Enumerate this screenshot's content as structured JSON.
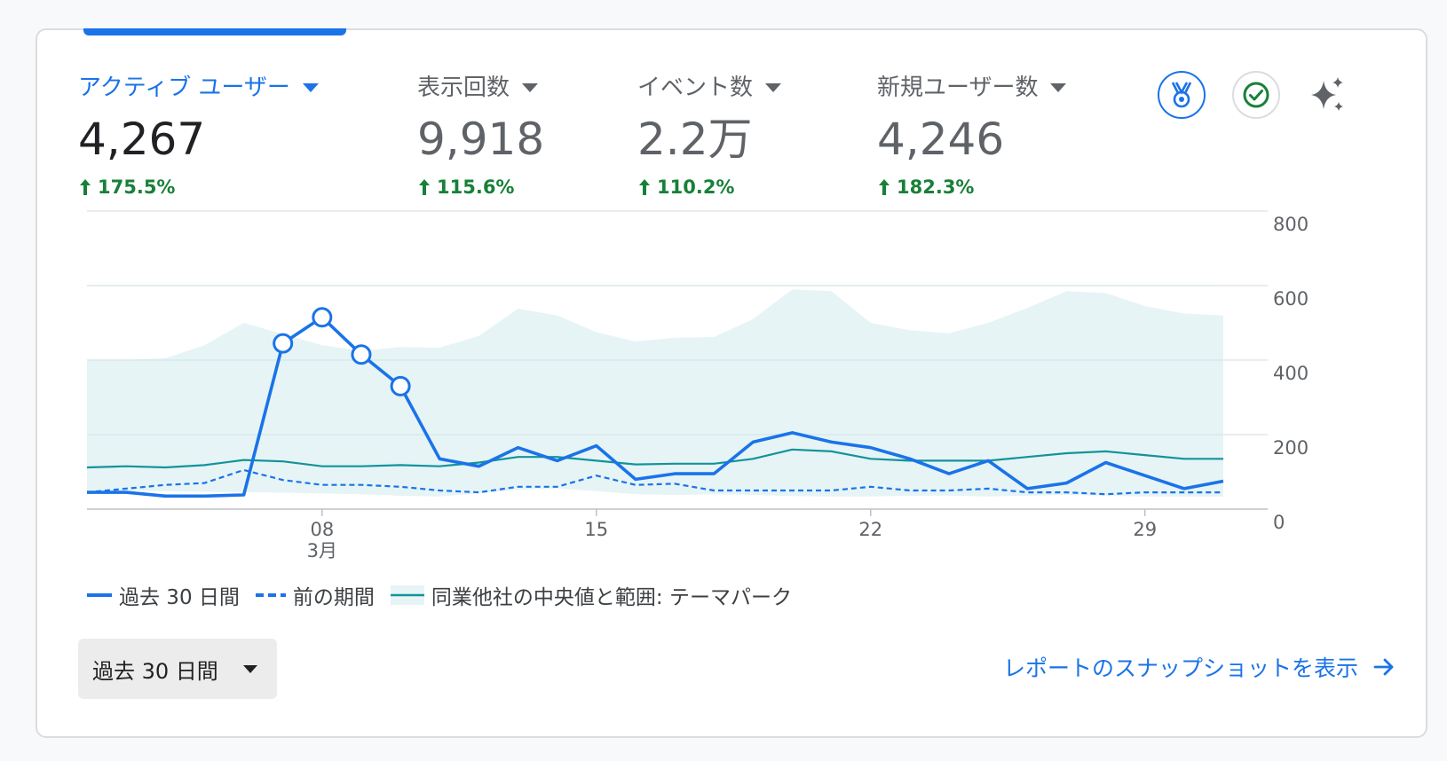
{
  "metrics": [
    {
      "label": "アクティブ ユーザー",
      "value": "4,267",
      "delta": "175.5%",
      "active": true
    },
    {
      "label": "表示回数",
      "value": "9,918",
      "delta": "115.6%",
      "active": false
    },
    {
      "label": "イベント数",
      "value": "2.2万",
      "delta": "110.2%",
      "active": false
    },
    {
      "label": "新規ユーザー数",
      "value": "4,246",
      "delta": "182.3%",
      "active": false
    }
  ],
  "icons": [
    "medal-icon",
    "check-circle-icon",
    "sparkle-icon"
  ],
  "colors": {
    "accent": "#1a73e8",
    "positive": "#188038",
    "benchmark": "#12939a",
    "band": "#e6f4f6"
  },
  "chart_data": {
    "type": "line",
    "x": [
      "3/2",
      "3/3",
      "3/4",
      "3/5",
      "3/6",
      "3/7",
      "3/8",
      "3/9",
      "3/10",
      "3/11",
      "3/12",
      "3/13",
      "3/14",
      "3/15",
      "3/16",
      "3/17",
      "3/18",
      "3/19",
      "3/20",
      "3/21",
      "3/22",
      "3/23",
      "3/24",
      "3/25",
      "3/26",
      "3/27",
      "3/28",
      "3/29",
      "3/30",
      "3/31"
    ],
    "x_ticks": [
      {
        "label": "08",
        "sub": "3月",
        "index": 6
      },
      {
        "label": "15",
        "sub": "",
        "index": 13
      },
      {
        "label": "22",
        "sub": "",
        "index": 20
      },
      {
        "label": "29",
        "sub": "",
        "index": 27
      }
    ],
    "ylim": [
      0,
      800
    ],
    "yticks": [
      "800",
      "600",
      "400",
      "200",
      "0"
    ],
    "yaxis_position": "right",
    "grid": true,
    "series": [
      {
        "name": "過去 30 日間",
        "style": "solid",
        "values": [
          45,
          45,
          35,
          35,
          38,
          445,
          515,
          415,
          330,
          135,
          115,
          165,
          130,
          170,
          80,
          95,
          95,
          180,
          205,
          180,
          165,
          135,
          95,
          130,
          55,
          70,
          125,
          90,
          55,
          75
        ],
        "anomaly_points": [
          5,
          6,
          7,
          8
        ]
      },
      {
        "name": "前の期間",
        "style": "dashed",
        "values": [
          45,
          55,
          65,
          70,
          105,
          78,
          65,
          65,
          60,
          50,
          45,
          60,
          60,
          90,
          65,
          68,
          50,
          50,
          50,
          50,
          60,
          50,
          50,
          55,
          45,
          45,
          40,
          45,
          45,
          45
        ]
      },
      {
        "name": "同業他社の中央値と範囲: テーマパーク",
        "style": "band",
        "median": [
          112,
          115,
          112,
          118,
          132,
          128,
          115,
          115,
          118,
          115,
          125,
          140,
          140,
          130,
          120,
          122,
          122,
          135,
          160,
          155,
          135,
          130,
          130,
          130,
          140,
          150,
          155,
          145,
          135,
          135
        ],
        "upper": [
          400,
          400,
          405,
          440,
          500,
          470,
          440,
          425,
          435,
          433,
          465,
          538,
          520,
          475,
          450,
          460,
          462,
          510,
          590,
          585,
          500,
          480,
          472,
          500,
          540,
          585,
          580,
          545,
          525,
          520
        ],
        "lower": [
          50,
          50,
          48,
          46,
          46,
          44,
          42,
          40,
          36,
          34,
          42,
          52,
          55,
          48,
          40,
          38,
          40,
          38,
          35,
          34,
          34,
          36,
          36,
          34,
          36,
          38,
          36,
          34,
          34,
          34
        ]
      }
    ]
  },
  "legend": [
    {
      "label": "過去 30 日間"
    },
    {
      "label": "前の期間"
    },
    {
      "label": "同業他社の中央値と範囲: テーマパーク"
    }
  ],
  "footer": {
    "range_label": "過去 30 日間",
    "snapshot_label": "レポートのスナップショットを表示"
  }
}
